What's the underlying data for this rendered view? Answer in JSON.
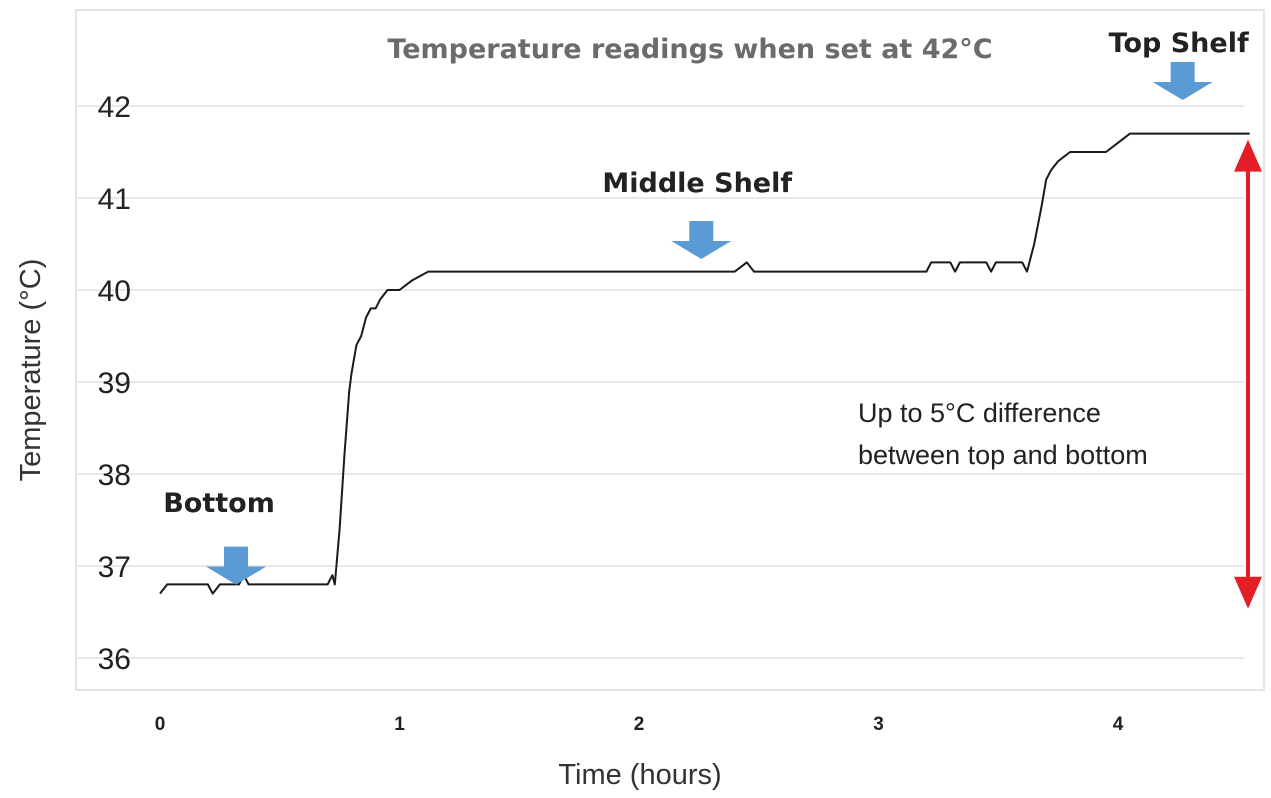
{
  "chart_data": {
    "type": "line",
    "title": "Temperature readings when set at 42°C",
    "xlabel": "Time (hours)",
    "ylabel": "Temperature (°C)",
    "xlim": [
      0,
      4.6
    ],
    "ylim": [
      35.6,
      42.4
    ],
    "x_ticks": [
      "0",
      "1",
      "2",
      "3",
      "4"
    ],
    "y_ticks": [
      "36",
      "37",
      "38",
      "39",
      "40",
      "41",
      "42"
    ],
    "grid": true,
    "line_color": "#1a1a1a",
    "arrow_color": "#5b9bd5",
    "range_color": "#e41e26",
    "series": [
      {
        "x": [
          0.0,
          0.03,
          0.2,
          0.22,
          0.25,
          0.33,
          0.35,
          0.37,
          0.7,
          0.72,
          0.73,
          0.75,
          0.77,
          0.79,
          0.8,
          0.82,
          0.84,
          0.86,
          0.88,
          0.9,
          0.92,
          0.95,
          1.0,
          1.05,
          1.12,
          1.15,
          1.2,
          2.4,
          2.45,
          2.48,
          2.5,
          3.2,
          3.22,
          3.3,
          3.32,
          3.34,
          3.45,
          3.47,
          3.49,
          3.6,
          3.62,
          3.65,
          3.68,
          3.7,
          3.72,
          3.75,
          3.8,
          3.85,
          3.95,
          4.0,
          4.05,
          4.1,
          4.4,
          4.55
        ],
        "y": [
          36.7,
          36.8,
          36.8,
          36.7,
          36.8,
          36.8,
          36.9,
          36.8,
          36.8,
          36.9,
          36.8,
          37.4,
          38.2,
          38.9,
          39.1,
          39.4,
          39.5,
          39.7,
          39.8,
          39.8,
          39.9,
          40.0,
          40.0,
          40.1,
          40.2,
          40.2,
          40.2,
          40.2,
          40.3,
          40.2,
          40.2,
          40.2,
          40.3,
          40.3,
          40.2,
          40.3,
          40.3,
          40.2,
          40.3,
          40.3,
          40.2,
          40.5,
          40.9,
          41.2,
          41.3,
          41.4,
          41.5,
          41.5,
          41.5,
          41.6,
          41.7,
          41.7,
          41.7,
          41.7
        ]
      }
    ],
    "annotations": {
      "bottom": {
        "label": "Bottom",
        "x": 0.33,
        "y": 36.95
      },
      "middle": {
        "label": "Middle Shelf",
        "x": 2.26,
        "y": 40.5
      },
      "top": {
        "label": "Top Shelf",
        "x": 4.27,
        "y": 42.0
      },
      "difference_line1": "Up to 5°C difference",
      "difference_line2": "between top and bottom",
      "range": [
        36.6,
        41.7
      ]
    }
  }
}
